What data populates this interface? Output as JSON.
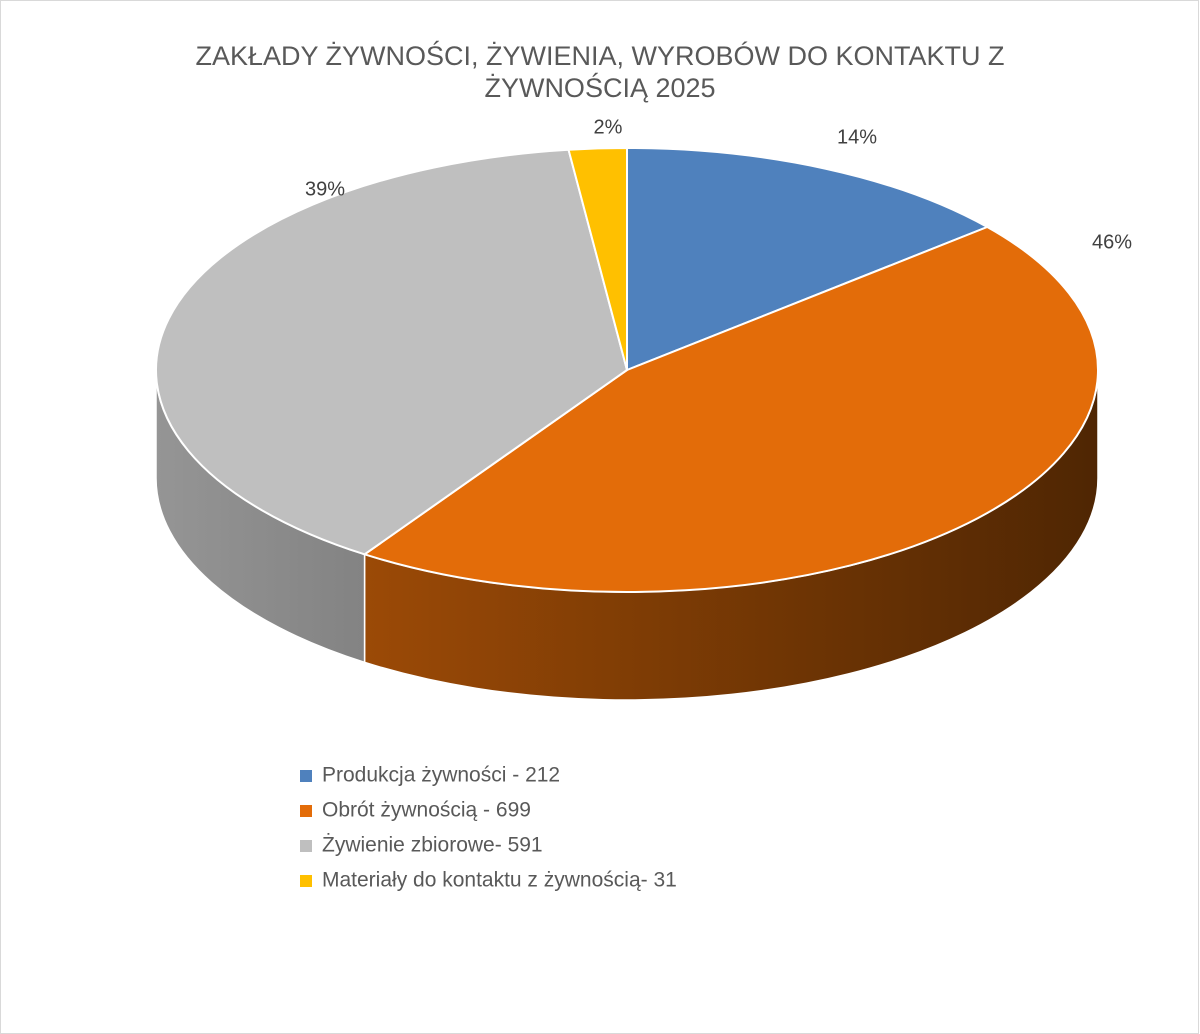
{
  "chart_data": {
    "type": "pie",
    "title": "ZAKŁADY ŻYWNOŚCI, ŻYWIENIA, WYROBÓW DO KONTAKTU Z ŻYWNOŚCIĄ 2025",
    "categories": [
      "Produkcja żywności - 212",
      "Obrót żywnością - 699",
      "Żywienie zbiorowe- 591",
      "Materiały do kontaktu z żywnością- 31"
    ],
    "values": [
      14,
      46,
      39,
      2
    ],
    "value_labels": [
      "14%",
      "46%",
      "39%",
      "2%"
    ],
    "colors": [
      "#4f81bd",
      "#e36c09",
      "#bfbfbf",
      "#ffc000"
    ],
    "legend": "bottom"
  }
}
